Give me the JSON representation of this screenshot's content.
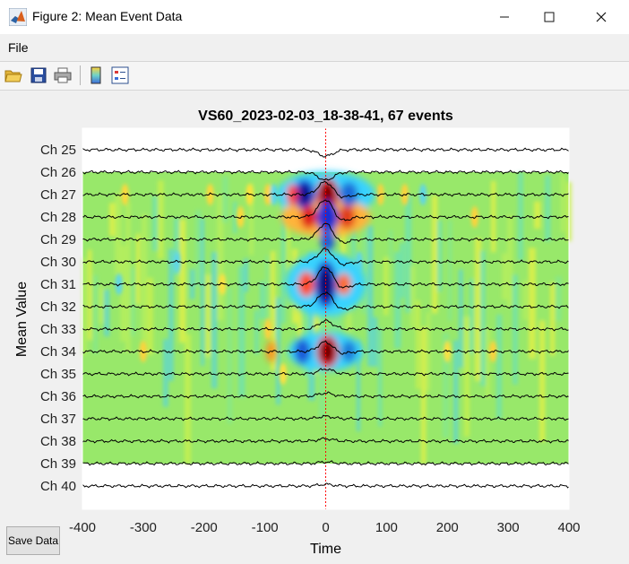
{
  "window": {
    "title": "Figure 2: Mean Event Data"
  },
  "menu": {
    "file_label": "File"
  },
  "toolbar": {
    "items": [
      {
        "name": "open-icon"
      },
      {
        "name": "save-icon"
      },
      {
        "name": "print-icon"
      },
      {
        "name": "colorbar-icon"
      },
      {
        "name": "legend-icon"
      }
    ]
  },
  "chart_data": {
    "type": "line",
    "title": "VS60_2023-02-03_18-38-41, 67 events",
    "xlabel": "Time",
    "ylabel": "Mean Value",
    "xlim": [
      -400,
      400
    ],
    "xticks": [
      -400,
      -300,
      -200,
      -100,
      0,
      100,
      200,
      300,
      400
    ],
    "channels": [
      "Ch 25",
      "Ch 26",
      "Ch 27",
      "Ch 28",
      "Ch 29",
      "Ch 30",
      "Ch 31",
      "Ch 32",
      "Ch 33",
      "Ch 34",
      "Ch 35",
      "Ch 36",
      "Ch 37",
      "Ch 38",
      "Ch 39",
      "Ch 40"
    ],
    "event_marker_x": 0,
    "heatmap_channel_range": [
      "Ch 26",
      "Ch 39"
    ],
    "grid": false,
    "colors": {
      "trace": "#000000",
      "marker": "#ff0000"
    }
  },
  "buttons": {
    "save_data_label": "Save Data"
  }
}
